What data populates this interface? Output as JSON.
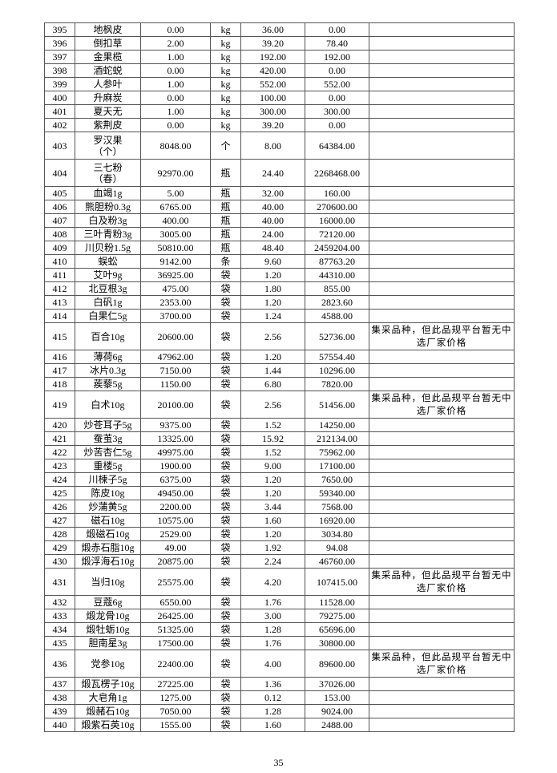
{
  "note_text": "集采品种，但此品规平台暂无中选厂家价格",
  "rows": [
    [
      "395",
      "地枫皮",
      "0.00",
      "kg",
      "36.00",
      "0.00",
      ""
    ],
    [
      "396",
      "倒扣草",
      "2.00",
      "kg",
      "39.20",
      "78.40",
      ""
    ],
    [
      "397",
      "金果榄",
      "1.00",
      "kg",
      "192.00",
      "192.00",
      ""
    ],
    [
      "398",
      "酒蛇蜕",
      "0.00",
      "kg",
      "420.00",
      "0.00",
      ""
    ],
    [
      "399",
      "人参叶",
      "1.00",
      "kg",
      "552.00",
      "552.00",
      ""
    ],
    [
      "400",
      "升麻炭",
      "0.00",
      "kg",
      "100.00",
      "0.00",
      ""
    ],
    [
      "401",
      "夏天无",
      "1.00",
      "kg",
      "300.00",
      "300.00",
      ""
    ],
    [
      "402",
      "紫荆皮",
      "0.00",
      "kg",
      "39.20",
      "0.00",
      ""
    ],
    [
      "403",
      "罗汉果（个）",
      "8048.00",
      "个",
      "8.00",
      "64384.00",
      ""
    ],
    [
      "404",
      "三七粉（春）",
      "92970.00",
      "瓶",
      "24.40",
      "2268468.00",
      ""
    ],
    [
      "405",
      "血竭1g",
      "5.00",
      "瓶",
      "32.00",
      "160.00",
      ""
    ],
    [
      "406",
      "熊胆粉0.3g",
      "6765.00",
      "瓶",
      "40.00",
      "270600.00",
      ""
    ],
    [
      "407",
      "白及粉3g",
      "400.00",
      "瓶",
      "40.00",
      "16000.00",
      ""
    ],
    [
      "408",
      "三叶青粉3g",
      "3005.00",
      "瓶",
      "24.00",
      "72120.00",
      ""
    ],
    [
      "409",
      "川贝粉1.5g",
      "50810.00",
      "瓶",
      "48.40",
      "2459204.00",
      ""
    ],
    [
      "410",
      "蜈蚣",
      "9142.00",
      "条",
      "9.60",
      "87763.20",
      ""
    ],
    [
      "411",
      "艾叶9g",
      "36925.00",
      "袋",
      "1.20",
      "44310.00",
      ""
    ],
    [
      "412",
      "北豆根3g",
      "475.00",
      "袋",
      "1.80",
      "855.00",
      ""
    ],
    [
      "413",
      "白矾1g",
      "2353.00",
      "袋",
      "1.20",
      "2823.60",
      ""
    ],
    [
      "414",
      "白果仁5g",
      "3700.00",
      "袋",
      "1.24",
      "4588.00",
      ""
    ],
    [
      "415",
      "百合10g",
      "20600.00",
      "袋",
      "2.56",
      "52736.00",
      "集采品种，但此品规平台暂无中选厂家价格"
    ],
    [
      "416",
      "薄荷6g",
      "47962.00",
      "袋",
      "1.20",
      "57554.40",
      ""
    ],
    [
      "417",
      "冰片0.3g",
      "7150.00",
      "袋",
      "1.44",
      "10296.00",
      ""
    ],
    [
      "418",
      "蒺藜5g",
      "1150.00",
      "袋",
      "6.80",
      "7820.00",
      ""
    ],
    [
      "419",
      "白术10g",
      "20100.00",
      "袋",
      "2.56",
      "51456.00",
      "集采品种，但此品规平台暂无中选厂家价格"
    ],
    [
      "420",
      "炒苍耳子5g",
      "9375.00",
      "袋",
      "1.52",
      "14250.00",
      ""
    ],
    [
      "421",
      "蚕茧3g",
      "13325.00",
      "袋",
      "15.92",
      "212134.00",
      ""
    ],
    [
      "422",
      "炒苦杏仁5g",
      "49975.00",
      "袋",
      "1.52",
      "75962.00",
      ""
    ],
    [
      "423",
      "重楼5g",
      "1900.00",
      "袋",
      "9.00",
      "17100.00",
      ""
    ],
    [
      "424",
      "川楝子5g",
      "6375.00",
      "袋",
      "1.20",
      "7650.00",
      ""
    ],
    [
      "425",
      "陈皮10g",
      "49450.00",
      "袋",
      "1.20",
      "59340.00",
      ""
    ],
    [
      "426",
      "炒蒲黄5g",
      "2200.00",
      "袋",
      "3.44",
      "7568.00",
      ""
    ],
    [
      "427",
      "磁石10g",
      "10575.00",
      "袋",
      "1.60",
      "16920.00",
      ""
    ],
    [
      "428",
      "煅磁石10g",
      "2529.00",
      "袋",
      "1.20",
      "3034.80",
      ""
    ],
    [
      "429",
      "煅赤石脂10g",
      "49.00",
      "袋",
      "1.92",
      "94.08",
      ""
    ],
    [
      "430",
      "煅浮海石10g",
      "20875.00",
      "袋",
      "2.24",
      "46760.00",
      ""
    ],
    [
      "431",
      "当归10g",
      "25575.00",
      "袋",
      "4.20",
      "107415.00",
      "集采品种，但此品规平台暂无中选厂家价格"
    ],
    [
      "432",
      "豆蔻6g",
      "6550.00",
      "袋",
      "1.76",
      "11528.00",
      ""
    ],
    [
      "433",
      "煅龙骨10g",
      "26425.00",
      "袋",
      "3.00",
      "79275.00",
      ""
    ],
    [
      "434",
      "煅牡蛎10g",
      "51325.00",
      "袋",
      "1.28",
      "65696.00",
      ""
    ],
    [
      "435",
      "胆南星3g",
      "17500.00",
      "袋",
      "1.76",
      "30800.00",
      ""
    ],
    [
      "436",
      "党参10g",
      "22400.00",
      "袋",
      "4.00",
      "89600.00",
      "集采品种，但此品规平台暂无中选厂家价格"
    ],
    [
      "437",
      "煅瓦楞子10g",
      "27225.00",
      "袋",
      "1.36",
      "37026.00",
      ""
    ],
    [
      "438",
      "大皂角1g",
      "1275.00",
      "袋",
      "0.12",
      "153.00",
      ""
    ],
    [
      "439",
      "煅赭石10g",
      "7050.00",
      "袋",
      "1.28",
      "9024.00",
      ""
    ],
    [
      "440",
      "煅紫石英10g",
      "1555.00",
      "袋",
      "1.60",
      "2488.00",
      ""
    ]
  ],
  "page_number": "35"
}
